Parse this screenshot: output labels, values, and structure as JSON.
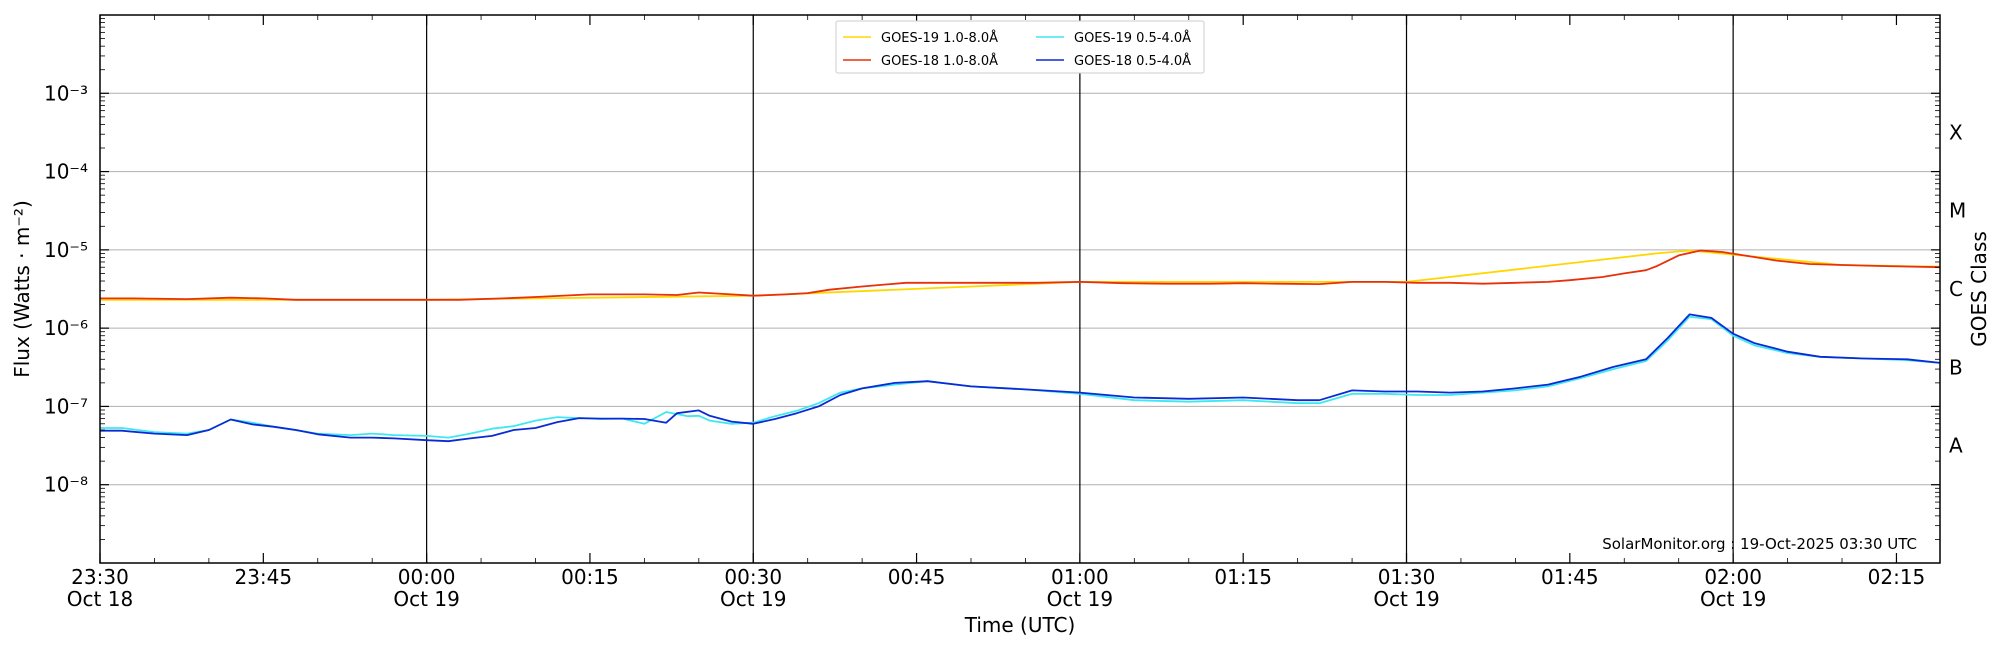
{
  "chart_data": {
    "type": "line",
    "xlabel": "Time (UTC)",
    "ylabel": "Flux (Watts · m⁻²)",
    "y2label": "GOES Class",
    "yscale": "log",
    "ylim": [
      1e-09,
      0.01
    ],
    "xlim_minutes": [
      -30,
      139
    ],
    "grid": "horizontal at decades, vertical at 30-minute marks",
    "legend_position": "top-center",
    "credit": "SolarMonitor.org : 19-Oct-2025 03:30 UTC",
    "x_ticks": [
      {
        "label": "23:30",
        "sublabel": "Oct 18",
        "minute": -30
      },
      {
        "label": "23:45",
        "sublabel": "",
        "minute": -15
      },
      {
        "label": "00:00",
        "sublabel": "Oct 19",
        "minute": 0
      },
      {
        "label": "00:15",
        "sublabel": "",
        "minute": 15
      },
      {
        "label": "00:30",
        "sublabel": "Oct 19",
        "minute": 30
      },
      {
        "label": "00:45",
        "sublabel": "",
        "minute": 45
      },
      {
        "label": "01:00",
        "sublabel": "Oct 19",
        "minute": 60
      },
      {
        "label": "01:15",
        "sublabel": "",
        "minute": 75
      },
      {
        "label": "01:30",
        "sublabel": "Oct 19",
        "minute": 90
      },
      {
        "label": "01:45",
        "sublabel": "",
        "minute": 105
      },
      {
        "label": "02:00",
        "sublabel": "Oct 19",
        "minute": 120
      },
      {
        "label": "02:15",
        "sublabel": "",
        "minute": 135
      }
    ],
    "y_ticks": [
      {
        "exp": -8,
        "label": "10⁻⁸"
      },
      {
        "exp": -7,
        "label": "10⁻⁷"
      },
      {
        "exp": -6,
        "label": "10⁻⁶"
      },
      {
        "exp": -5,
        "label": "10⁻⁵"
      },
      {
        "exp": -4,
        "label": "10⁻⁴"
      },
      {
        "exp": -3,
        "label": "10⁻³"
      }
    ],
    "class_labels": [
      {
        "label": "A",
        "exp": -7.5
      },
      {
        "label": "B",
        "exp": -6.5
      },
      {
        "label": "C",
        "exp": -5.5
      },
      {
        "label": "M",
        "exp": -4.5
      },
      {
        "label": "X",
        "exp": -3.5
      }
    ],
    "series": [
      {
        "name": "GOES-19 1.0-8.0Å",
        "color": "#ffd700",
        "x": [
          -30,
          0,
          30,
          60,
          90,
          113,
          116,
          130,
          139
        ],
        "y": [
          2.3e-06,
          2.3e-06,
          2.6e-06,
          3.9e-06,
          3.9e-06,
          9e-06,
          9.8e-06,
          6.4e-06,
          6.1e-06
        ]
      },
      {
        "name": "GOES-18 1.0-8.0Å",
        "color": "#e8300a",
        "x": [
          -30,
          -27,
          -22,
          -18,
          -15,
          -12,
          -8,
          -3,
          0,
          3,
          7,
          10,
          15,
          20,
          23,
          25,
          28,
          30,
          33,
          35,
          37,
          40,
          44,
          48,
          52,
          56,
          60,
          64,
          68,
          72,
          75,
          78,
          82,
          85,
          88,
          91,
          94,
          97,
          100,
          103,
          105,
          108,
          110,
          112,
          113,
          115,
          117,
          119,
          121,
          124,
          127,
          130,
          134,
          139
        ],
        "y": [
          2.4e-06,
          2.4e-06,
          2.35e-06,
          2.45e-06,
          2.4e-06,
          2.3e-06,
          2.3e-06,
          2.3e-06,
          2.3e-06,
          2.3e-06,
          2.4e-06,
          2.5e-06,
          2.7e-06,
          2.7e-06,
          2.65e-06,
          2.85e-06,
          2.7e-06,
          2.6e-06,
          2.7e-06,
          2.8e-06,
          3.1e-06,
          3.4e-06,
          3.8e-06,
          3.8e-06,
          3.8e-06,
          3.8e-06,
          3.9e-06,
          3.75e-06,
          3.7e-06,
          3.7e-06,
          3.75e-06,
          3.7e-06,
          3.65e-06,
          3.9e-06,
          3.9e-06,
          3.8e-06,
          3.8e-06,
          3.7e-06,
          3.8e-06,
          3.9e-06,
          4.1e-06,
          4.5e-06,
          5e-06,
          5.5e-06,
          6.2e-06,
          8.5e-06,
          9.8e-06,
          9.4e-06,
          8.5e-06,
          7.3e-06,
          6.6e-06,
          6.4e-06,
          6.2e-06,
          6e-06
        ]
      },
      {
        "name": "GOES-19 0.5-4.0Å",
        "color": "#3ee8f0",
        "x": [
          -30,
          -28,
          -25,
          -22,
          -20,
          -18,
          -16,
          -14,
          -10,
          -7,
          -5,
          -3,
          0,
          2,
          4,
          6,
          8,
          10,
          12,
          14,
          16,
          18,
          20,
          22,
          24,
          25,
          26,
          28,
          30,
          32,
          34,
          36,
          38,
          40,
          43,
          46,
          50,
          55,
          60,
          65,
          70,
          75,
          80,
          82,
          85,
          88,
          91,
          94,
          97,
          100,
          103,
          106,
          109,
          112,
          114,
          116,
          118,
          120,
          122,
          125,
          128,
          132,
          136,
          139
        ],
        "y": [
          5.3e-08,
          5.3e-08,
          4.7e-08,
          4.5e-08,
          5e-08,
          6.8e-08,
          6.2e-08,
          5.5e-08,
          4.5e-08,
          4.3e-08,
          4.5e-08,
          4.3e-08,
          4.2e-08,
          4e-08,
          4.5e-08,
          5.2e-08,
          5.6e-08,
          6.6e-08,
          7.3e-08,
          7.1e-08,
          6.9e-08,
          7e-08,
          6e-08,
          8.5e-08,
          7.5e-08,
          7.6e-08,
          6.6e-08,
          6e-08,
          6.2e-08,
          7.5e-08,
          8.8e-08,
          1.1e-07,
          1.5e-07,
          1.7e-07,
          1.9e-07,
          2.1e-07,
          1.8e-07,
          1.65e-07,
          1.45e-07,
          1.2e-07,
          1.15e-07,
          1.2e-07,
          1.1e-07,
          1.1e-07,
          1.45e-07,
          1.45e-07,
          1.4e-07,
          1.4e-07,
          1.5e-07,
          1.6e-07,
          1.8e-07,
          2.3e-07,
          3e-07,
          3.8e-07,
          7e-07,
          1.4e-06,
          1.3e-06,
          8e-07,
          6e-07,
          4.8e-07,
          4.3e-07,
          4.1e-07,
          3.9e-07,
          3.6e-07
        ]
      },
      {
        "name": "GOES-18 0.5-4.0Å",
        "color": "#0a2ad6",
        "x": [
          -30,
          -28,
          -25,
          -22,
          -20,
          -18,
          -16,
          -14,
          -12,
          -10,
          -7,
          -5,
          -3,
          0,
          2,
          4,
          6,
          8,
          10,
          12,
          14,
          16,
          18,
          20,
          22,
          23,
          25,
          26,
          28,
          30,
          32,
          34,
          36,
          38,
          40,
          43,
          46,
          50,
          55,
          60,
          65,
          70,
          75,
          80,
          82,
          85,
          88,
          91,
          94,
          97,
          100,
          103,
          106,
          109,
          112,
          114,
          116,
          118,
          120,
          122,
          125,
          128,
          132,
          136,
          139
        ],
        "y": [
          4.9e-08,
          4.9e-08,
          4.5e-08,
          4.3e-08,
          5e-08,
          6.8e-08,
          5.9e-08,
          5.5e-08,
          5e-08,
          4.4e-08,
          4e-08,
          4e-08,
          3.9e-08,
          3.7e-08,
          3.6e-08,
          3.9e-08,
          4.2e-08,
          5e-08,
          5.3e-08,
          6.3e-08,
          7.1e-08,
          7e-08,
          7e-08,
          6.9e-08,
          6.2e-08,
          8.2e-08,
          8.9e-08,
          7.6e-08,
          6.4e-08,
          6e-08,
          6.9e-08,
          8.2e-08,
          1e-07,
          1.4e-07,
          1.7e-07,
          2e-07,
          2.1e-07,
          1.8e-07,
          1.65e-07,
          1.5e-07,
          1.3e-07,
          1.25e-07,
          1.3e-07,
          1.2e-07,
          1.2e-07,
          1.6e-07,
          1.55e-07,
          1.55e-07,
          1.5e-07,
          1.55e-07,
          1.7e-07,
          1.9e-07,
          2.4e-07,
          3.2e-07,
          4e-07,
          7.5e-07,
          1.5e-06,
          1.35e-06,
          8.5e-07,
          6.4e-07,
          5e-07,
          4.3e-07,
          4.1e-07,
          4e-07,
          3.6e-07
        ]
      }
    ]
  }
}
